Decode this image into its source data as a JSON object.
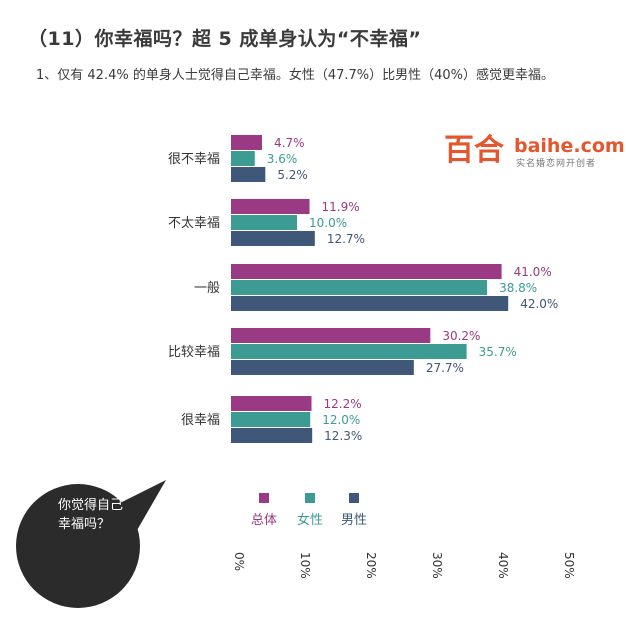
{
  "title": "（11）你幸福吗？超 5 成单身认为“不幸福”",
  "subtitle": "1、仅有 42.4% 的单身人士觉得自己幸福。女性（47.7%）比男性（40%）感觉更幸福。",
  "logo": {
    "mark": "百合",
    "domain": "baihe.com",
    "tagline": "实名婚恋网开创者"
  },
  "bubble_text": "你觉得自己\n幸福吗？",
  "colors": {
    "总体": "#9b3a84",
    "女性": "#3c9c94",
    "男性": "#3f5778"
  },
  "chart_data": {
    "type": "bar",
    "orientation": "horizontal",
    "categories": [
      "很不幸福",
      "不太幸福",
      "一般",
      "比较幸福",
      "很幸福"
    ],
    "series": [
      {
        "name": "总体",
        "values": [
          4.7,
          11.9,
          41.0,
          30.2,
          12.2
        ],
        "labels": [
          "4.7%",
          "11.9%",
          "41.0%",
          "30.2%",
          "12.2%"
        ]
      },
      {
        "name": "女性",
        "values": [
          3.6,
          10.0,
          38.8,
          35.7,
          12.0
        ],
        "labels": [
          "3.6%",
          "10.0%",
          "38.8%",
          "35.7%",
          "12.0%"
        ]
      },
      {
        "name": "男性",
        "values": [
          5.2,
          12.7,
          42.0,
          27.7,
          12.3
        ],
        "labels": [
          "5.2%",
          "12.7%",
          "42.0%",
          "27.7%",
          "12.3%"
        ]
      }
    ],
    "xlim": [
      0,
      50
    ],
    "xticks": [
      "0%",
      "10%",
      "20%",
      "30%",
      "40%",
      "50%"
    ],
    "legend": "bottom",
    "grid": false
  }
}
